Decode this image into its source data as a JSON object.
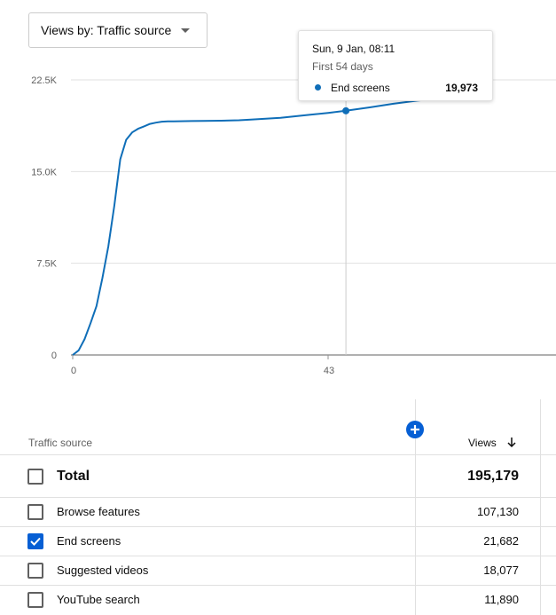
{
  "dropdown": {
    "label": "Views by: Traffic source"
  },
  "tooltip": {
    "date": "Sun, 9 Jan, 08:11",
    "subtitle": "First 54 days",
    "series": "End screens",
    "value": "19,973"
  },
  "table": {
    "header_source": "Traffic source",
    "header_views": "Views",
    "rows": [
      {
        "label": "Total",
        "value": "195,179",
        "checked": false
      },
      {
        "label": "Browse features",
        "value": "107,130",
        "checked": false
      },
      {
        "label": "End screens",
        "value": "21,682",
        "checked": true
      },
      {
        "label": "Suggested videos",
        "value": "18,077",
        "checked": false
      },
      {
        "label": "YouTube search",
        "value": "11,890",
        "checked": false
      }
    ]
  },
  "colors": {
    "line": "#0f6eb8",
    "accent": "#065fd4",
    "grid": "#e0e0e0"
  },
  "icons": {
    "dropdown": "dropdown-arrow-icon",
    "add": "add-circle-icon",
    "sort": "arrow-down-icon",
    "check": "check-icon"
  },
  "chart_data": {
    "type": "line",
    "ylim": [
      0,
      22500
    ],
    "y_ticks": [
      0,
      7500,
      15000,
      22500
    ],
    "y_tick_labels": [
      "0",
      "7.5K",
      "15.0K",
      "22.5K"
    ],
    "x_ticks": [
      0,
      43
    ],
    "x_tick_labels": [
      "0",
      "43"
    ],
    "grid": true,
    "series": [
      {
        "x": [
          0,
          1,
          2,
          3,
          4,
          5,
          6,
          7,
          8,
          9,
          10,
          11,
          12,
          13,
          14,
          15,
          16,
          17,
          18,
          20,
          22,
          25,
          28,
          30,
          35,
          40,
          43,
          46,
          50,
          54,
          58,
          62,
          66
        ],
        "y": [
          0,
          380,
          1300,
          2600,
          4000,
          6300,
          8900,
          12200,
          16000,
          17600,
          18200,
          18500,
          18700,
          18900,
          19000,
          19080,
          19100,
          19110,
          19120,
          19130,
          19140,
          19160,
          19200,
          19250,
          19400,
          19650,
          19800,
          19973,
          20250,
          20550,
          20800,
          21000,
          21100
        ]
      }
    ],
    "highlight": {
      "x": 46,
      "y": 19973
    }
  }
}
